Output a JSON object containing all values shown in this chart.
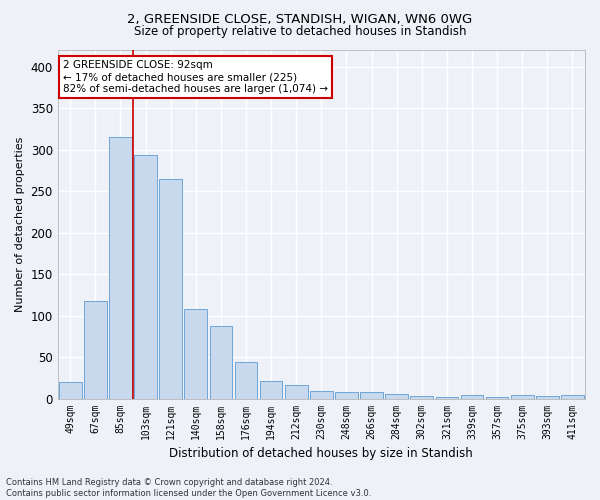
{
  "title_line1": "2, GREENSIDE CLOSE, STANDISH, WIGAN, WN6 0WG",
  "title_line2": "Size of property relative to detached houses in Standish",
  "xlabel": "Distribution of detached houses by size in Standish",
  "ylabel": "Number of detached properties",
  "bar_color": "#c8d9ee",
  "bar_edge_color": "#5b9bd5",
  "vline_color": "#cc0000",
  "vline_x_index": 2,
  "categories": [
    "49sqm",
    "67sqm",
    "85sqm",
    "103sqm",
    "121sqm",
    "140sqm",
    "158sqm",
    "176sqm",
    "194sqm",
    "212sqm",
    "230sqm",
    "248sqm",
    "266sqm",
    "284sqm",
    "302sqm",
    "321sqm",
    "339sqm",
    "357sqm",
    "375sqm",
    "393sqm",
    "411sqm"
  ],
  "values": [
    20,
    118,
    315,
    293,
    265,
    108,
    87,
    44,
    21,
    16,
    9,
    8,
    8,
    6,
    3,
    2,
    4,
    2,
    4,
    3,
    4
  ],
  "ylim": [
    0,
    420
  ],
  "yticks": [
    0,
    50,
    100,
    150,
    200,
    250,
    300,
    350,
    400
  ],
  "annotation_line1": "2 GREENSIDE CLOSE: 92sqm",
  "annotation_line2": "← 17% of detached houses are smaller (225)",
  "annotation_line3": "82% of semi-detached houses are larger (1,074) →",
  "annotation_box_color": "#ffffff",
  "annotation_box_edgecolor": "#cc0000",
  "footer_text": "Contains HM Land Registry data © Crown copyright and database right 2024.\nContains public sector information licensed under the Open Government Licence v3.0.",
  "bg_color": "#eef2f8",
  "grid_color": "#ffffff"
}
